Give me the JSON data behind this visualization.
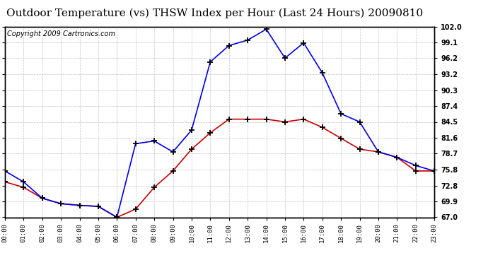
{
  "title": "Outdoor Temperature (vs) THSW Index per Hour (Last 24 Hours) 20090810",
  "copyright": "Copyright 2009 Cartronics.com",
  "hours": [
    "00:00",
    "01:00",
    "02:00",
    "03:00",
    "04:00",
    "05:00",
    "06:00",
    "07:00",
    "08:00",
    "09:00",
    "10:00",
    "11:00",
    "12:00",
    "13:00",
    "14:00",
    "15:00",
    "16:00",
    "17:00",
    "18:00",
    "19:00",
    "20:00",
    "21:00",
    "22:00",
    "23:00"
  ],
  "temp_red": [
    73.5,
    72.5,
    70.5,
    69.5,
    69.2,
    69.0,
    67.0,
    68.5,
    72.5,
    75.5,
    79.5,
    82.5,
    85.0,
    85.0,
    85.0,
    84.5,
    85.0,
    83.5,
    81.5,
    79.5,
    79.0,
    78.0,
    75.5,
    75.5
  ],
  "thsw_blue": [
    75.5,
    73.5,
    70.5,
    69.5,
    69.2,
    69.0,
    67.0,
    80.5,
    81.0,
    79.0,
    83.0,
    95.5,
    98.5,
    99.5,
    101.5,
    96.2,
    99.0,
    93.5,
    86.0,
    84.5,
    79.0,
    78.0,
    76.5,
    75.5
  ],
  "ymin": 67.0,
  "ymax": 102.0,
  "yticks": [
    102.0,
    99.1,
    96.2,
    93.2,
    90.3,
    87.4,
    84.5,
    81.6,
    78.7,
    75.8,
    72.8,
    69.9,
    67.0
  ],
  "bg_color": "#ffffff",
  "grid_color": "#bbbbbb",
  "line_color_red": "#cc0000",
  "line_color_blue": "#0000ee",
  "title_fontsize": 11,
  "copyright_fontsize": 7
}
